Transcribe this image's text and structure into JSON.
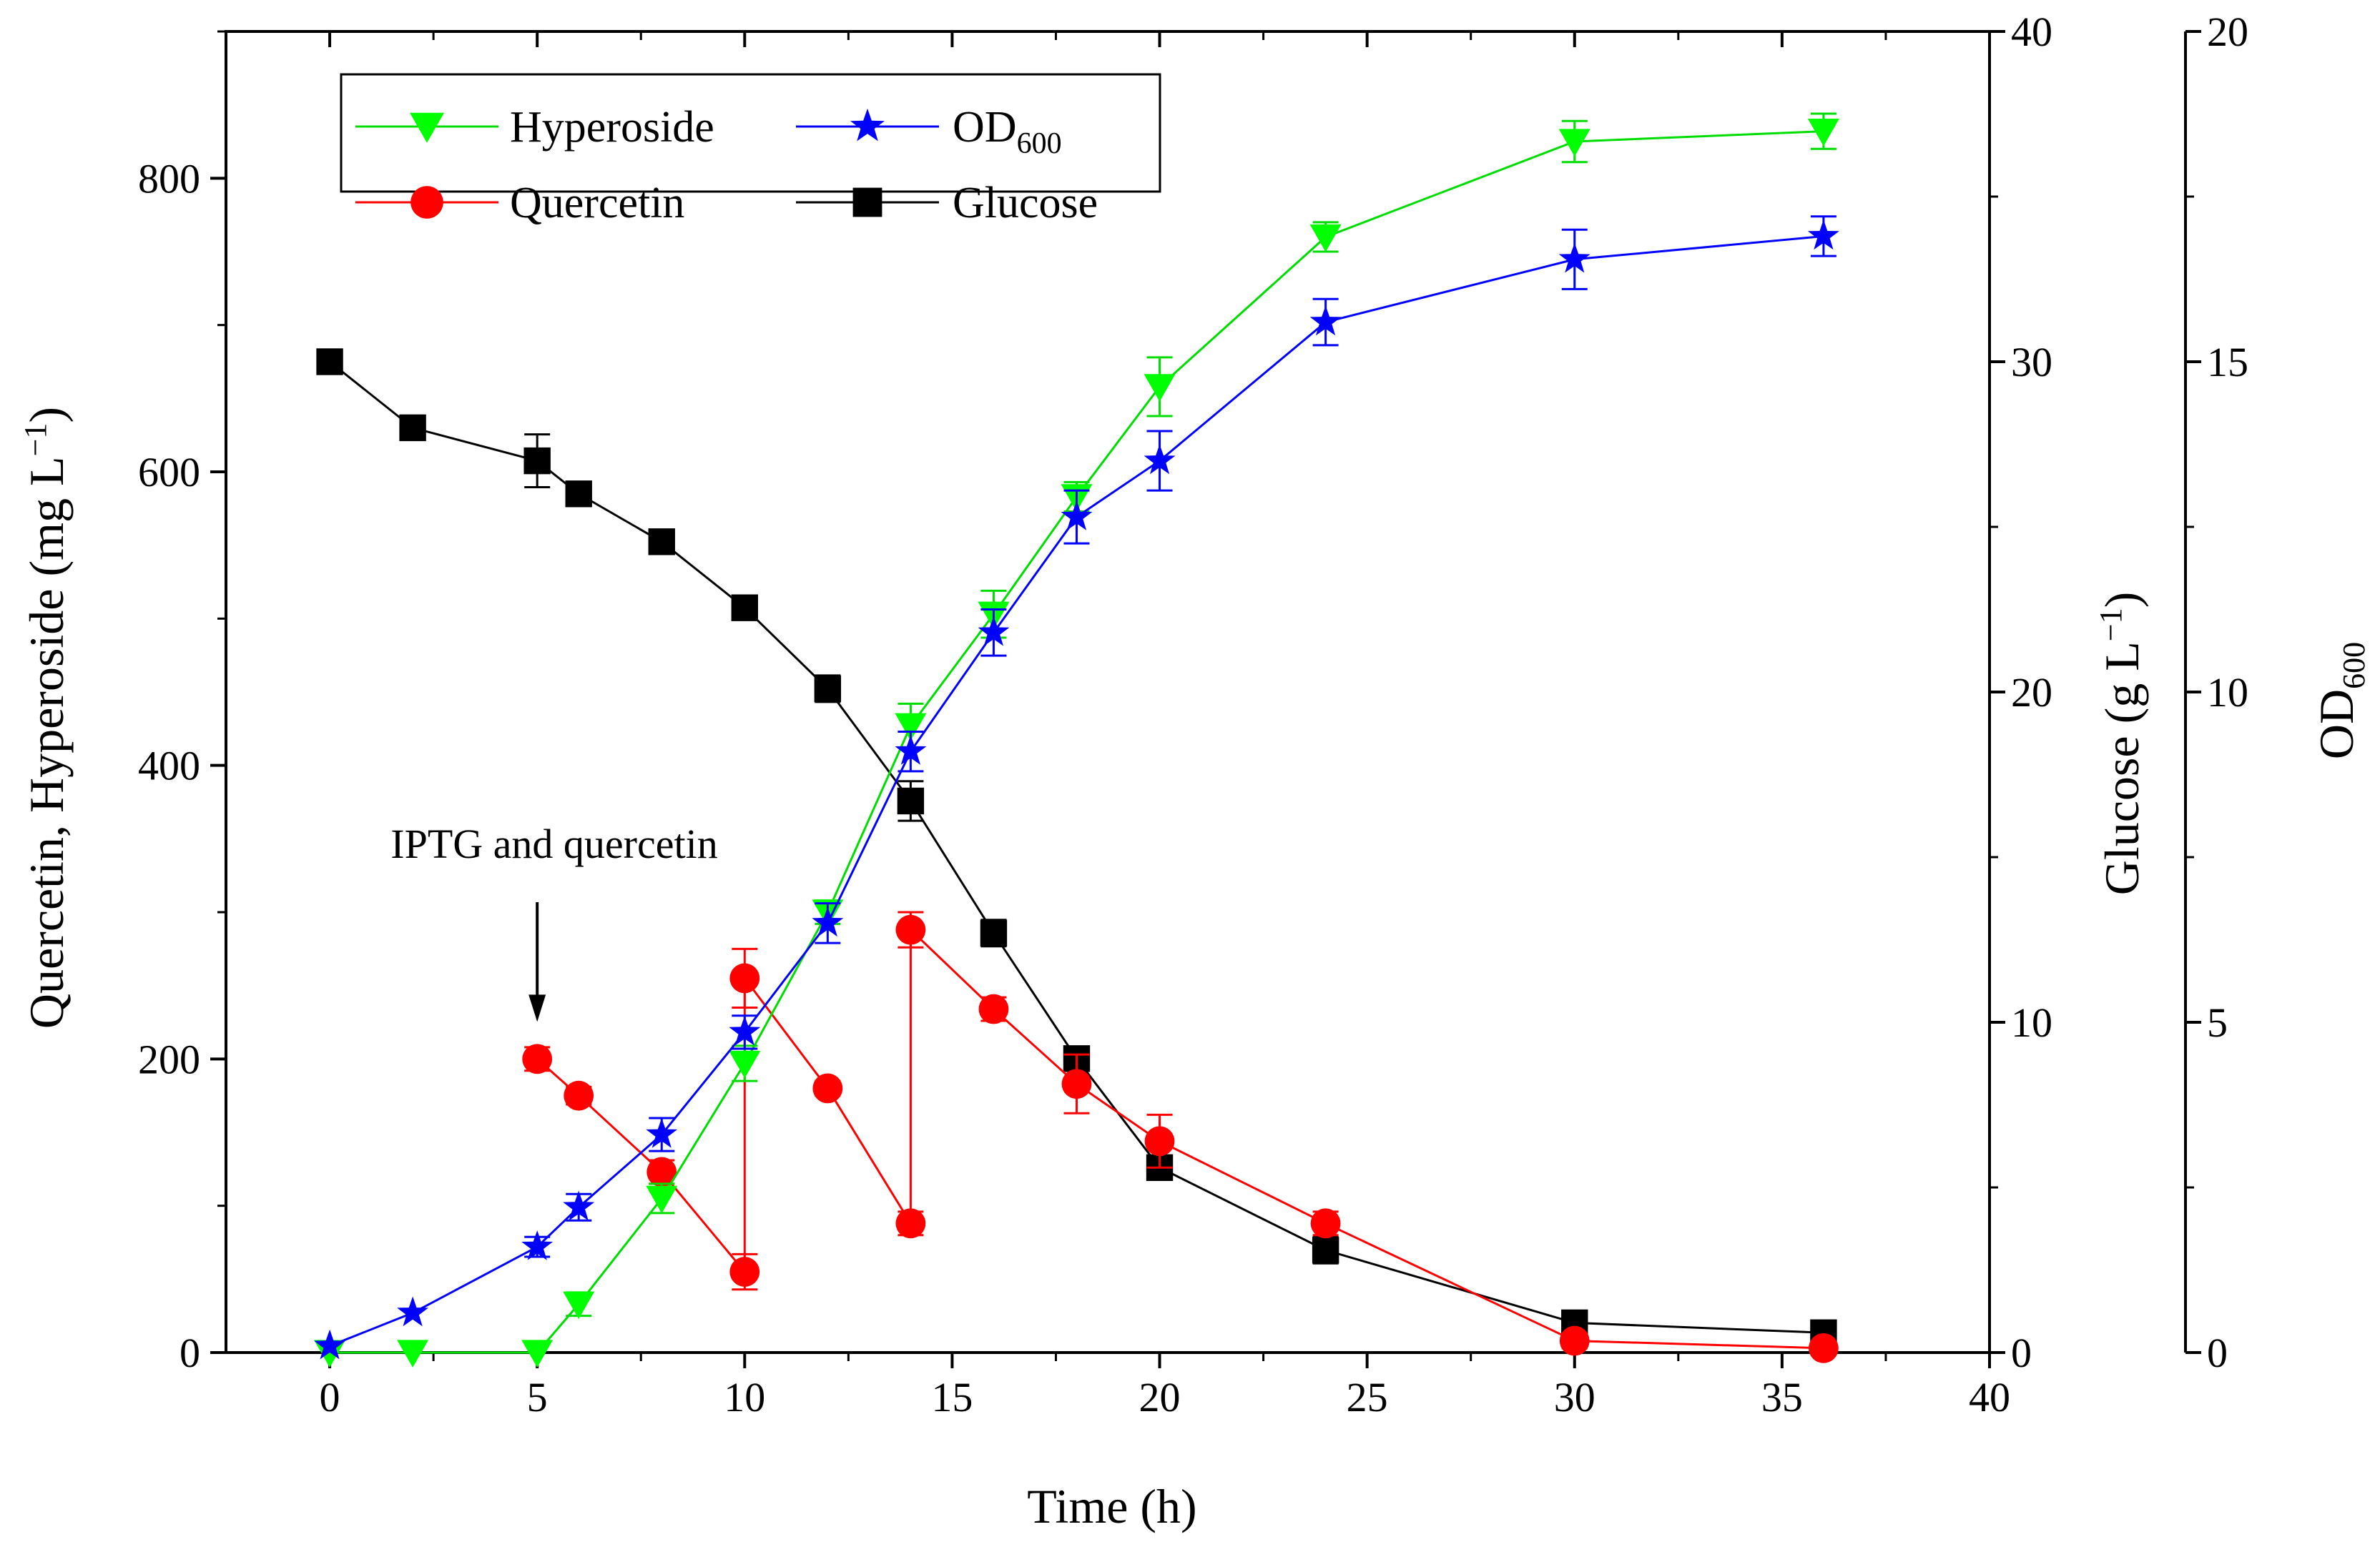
{
  "chart_data": {
    "type": "line",
    "title": "",
    "xlabel": "Time (h)",
    "xlim": [
      -2.5,
      40
    ],
    "xticks": [
      0,
      5,
      10,
      15,
      20,
      25,
      30,
      35,
      40
    ],
    "y_left": {
      "label_main": "Quercetin, Hyperoside (mg L",
      "label_sup": "−1",
      "label_close": ")",
      "lim": [
        0,
        900
      ],
      "ticks": [
        0,
        200,
        400,
        600,
        800
      ]
    },
    "y_right1": {
      "label_main": "Glucose (g L",
      "label_sup": "−1",
      "label_close": ")",
      "lim": [
        0,
        40
      ],
      "ticks": [
        0,
        10,
        20,
        30,
        40
      ]
    },
    "y_right2": {
      "label_main": "OD",
      "label_sub": "600",
      "lim": [
        0,
        20
      ],
      "ticks": [
        0,
        5,
        10,
        15,
        20
      ]
    },
    "legend": {
      "position": "top-left",
      "entries": [
        {
          "name": "Hyperoside",
          "marker": "triangle-down",
          "color": "#00ff00"
        },
        {
          "name": "OD",
          "sub": "600",
          "marker": "star",
          "color": "#0000ff"
        },
        {
          "name": "Quercetin",
          "marker": "circle",
          "color": "#ff0000"
        },
        {
          "name": "Glucose",
          "marker": "square",
          "color": "#000000"
        }
      ]
    },
    "series": [
      {
        "name": "Hyperoside",
        "axis": "left",
        "marker": "triangle-down",
        "color": "#00ff00",
        "line_color": "#00dd00",
        "x": [
          0,
          2,
          5,
          6,
          8,
          10,
          12,
          14,
          16,
          18,
          20,
          24,
          30,
          36
        ],
        "y": [
          0,
          0,
          0,
          33,
          105,
          197,
          300,
          427,
          503,
          583,
          658,
          760,
          825,
          832
        ],
        "err": [
          0,
          0,
          0,
          8,
          10,
          12,
          8,
          15,
          16,
          10,
          20,
          10,
          14,
          12
        ]
      },
      {
        "name": "OD600",
        "axis": "right2",
        "marker": "star",
        "color": "#0000ff",
        "line_color": "#0000ff",
        "x": [
          0,
          2,
          5,
          6,
          8,
          10,
          12,
          14,
          16,
          18,
          20,
          24,
          30,
          36
        ],
        "y": [
          0.1,
          0.6,
          1.6,
          2.2,
          3.3,
          4.85,
          6.5,
          9.1,
          10.9,
          12.65,
          13.5,
          15.6,
          16.55,
          16.9
        ],
        "err": [
          0,
          0,
          0.15,
          0.2,
          0.25,
          0.25,
          0.3,
          0.3,
          0.35,
          0.4,
          0.45,
          0.35,
          0.45,
          0.3
        ]
      },
      {
        "name": "Quercetin",
        "axis": "left",
        "marker": "circle",
        "color": "#ff0000",
        "line_color": "#ff0000",
        "x": [
          5,
          6,
          8,
          10,
          10,
          12,
          14,
          14,
          16,
          18,
          20,
          24,
          30,
          36
        ],
        "y": [
          200,
          175,
          123,
          55,
          255,
          180,
          88,
          288,
          234,
          183,
          144,
          88,
          8,
          3
        ],
        "err": [
          8,
          6,
          8,
          12,
          20,
          5,
          8,
          12,
          8,
          20,
          18,
          8,
          5,
          3
        ]
      },
      {
        "name": "Glucose",
        "axis": "right1",
        "marker": "square",
        "color": "#000000",
        "line_color": "#000000",
        "x": [
          0,
          2,
          5,
          6,
          8,
          10,
          12,
          14,
          16,
          18,
          20,
          24,
          30,
          36
        ],
        "y": [
          30.0,
          28.0,
          27.0,
          26.0,
          24.55,
          22.55,
          20.1,
          16.7,
          12.7,
          8.9,
          5.6,
          3.1,
          0.9,
          0.6
        ],
        "err": [
          0,
          0,
          0.8,
          0,
          0,
          0,
          0.4,
          0.6,
          0.4,
          0,
          0,
          0.4,
          0,
          0
        ]
      }
    ],
    "annotations": [
      {
        "text": "IPTG and quercetin",
        "arrow_x": 5,
        "arrow_tip_y": 200
      }
    ]
  }
}
